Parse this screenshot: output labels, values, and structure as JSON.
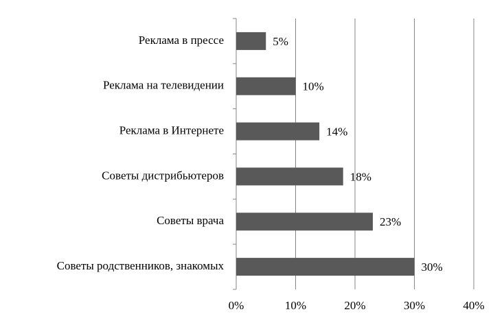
{
  "chart_data": {
    "type": "bar",
    "orientation": "horizontal",
    "categories": [
      "Реклама в прессе",
      "Реклама на телевидении",
      "Реклама в Интернете",
      "Советы дистрибьютеров",
      "Советы врача",
      "Советы родственников, знакомых"
    ],
    "values": [
      5,
      10,
      14,
      18,
      23,
      30
    ],
    "value_labels": [
      "5%",
      "10%",
      "14%",
      "18%",
      "23%",
      "30%"
    ],
    "color": "#595959",
    "xlim": [
      0,
      40
    ],
    "xticks": [
      {
        "value": 0,
        "label": "0%"
      },
      {
        "value": 10,
        "label": "10%"
      },
      {
        "value": 20,
        "label": "20%"
      },
      {
        "value": 30,
        "label": "30%"
      },
      {
        "value": 40,
        "label": "40%"
      }
    ],
    "grid": true
  }
}
